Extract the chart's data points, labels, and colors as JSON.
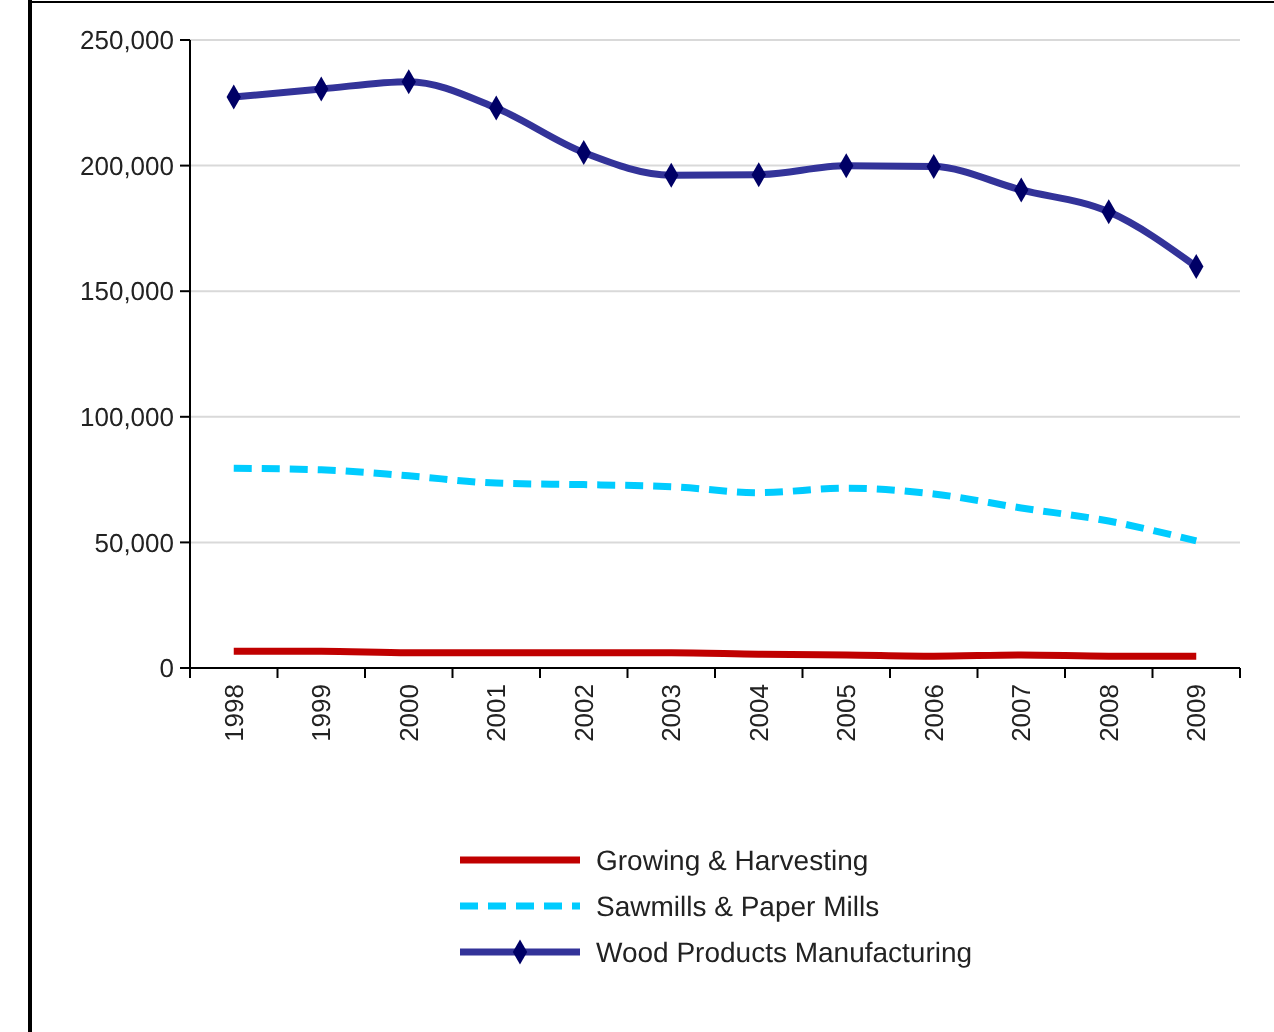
{
  "chart_data": {
    "type": "line",
    "categories": [
      "1998",
      "1999",
      "2000",
      "2001",
      "2002",
      "2003",
      "2004",
      "2005",
      "2006",
      "2007",
      "2008",
      "2009"
    ],
    "series": [
      {
        "name": "Growing & Harvesting",
        "color": "#c00000",
        "line_style": "solid",
        "marker": "none",
        "values": [
          6700,
          6700,
          6100,
          6100,
          6100,
          6100,
          5500,
          5200,
          4700,
          5200,
          4700,
          4700
        ]
      },
      {
        "name": "Sawmills & Paper Mills",
        "color": "#00ccff",
        "line_style": "dashed",
        "marker": "none",
        "values": [
          79500,
          78900,
          76500,
          73600,
          73000,
          72200,
          69800,
          71600,
          69300,
          63700,
          58500,
          50600
        ]
      },
      {
        "name": "Wood Products Manufacturing",
        "color": "#333399",
        "line_style": "solid",
        "marker": "diamond",
        "values": [
          227300,
          230500,
          233400,
          222900,
          205200,
          196200,
          196400,
          199900,
          199600,
          190300,
          181600,
          159800
        ]
      }
    ],
    "ylim": [
      0,
      250000
    ],
    "yticks": [
      {
        "value": 0,
        "label": "0"
      },
      {
        "value": 50000,
        "label": "50,000"
      },
      {
        "value": 100000,
        "label": "100,000"
      },
      {
        "value": 150000,
        "label": "150,000"
      },
      {
        "value": 200000,
        "label": "200,000"
      },
      {
        "value": 250000,
        "label": "250,000"
      }
    ],
    "grid": "y",
    "legend": "bottom"
  }
}
